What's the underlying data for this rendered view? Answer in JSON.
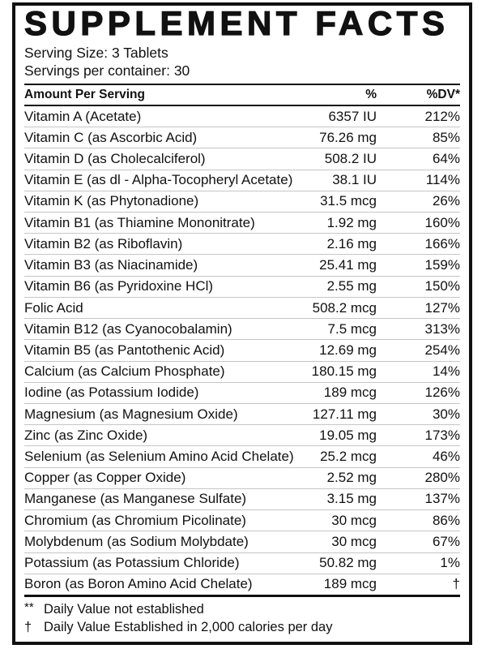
{
  "label": {
    "title": "SUPPLEMENT FACTS",
    "serving_size": "Serving Size: 3 Tablets",
    "servings_per_container": "Servings per container: 30",
    "columns": {
      "name": "Amount Per Serving",
      "amount": "%",
      "dv": "%DV*"
    },
    "rows": [
      {
        "name": "Vitamin A (Acetate)",
        "amount": "6357 IU",
        "dv": "212%"
      },
      {
        "name": "Vitamin C (as Ascorbic Acid)",
        "amount": "76.26 mg",
        "dv": "85%"
      },
      {
        "name": "Vitamin D (as Cholecalciferol)",
        "amount": "508.2 IU",
        "dv": "64%"
      },
      {
        "name": "Vitamin E (as dl - Alpha-Tocopheryl Acetate)",
        "amount": "38.1 IU",
        "dv": "114%"
      },
      {
        "name": "Vitamin K (as Phytonadione)",
        "amount": "31.5 mcg",
        "dv": "26%"
      },
      {
        "name": "Vitamin B1 (as Thiamine Mononitrate)",
        "amount": "1.92 mg",
        "dv": "160%"
      },
      {
        "name": "Vitamin B2 (as Riboflavin)",
        "amount": "2.16 mg",
        "dv": "166%"
      },
      {
        "name": "Vitamin B3 (as Niacinamide)",
        "amount": "25.41 mg",
        "dv": "159%"
      },
      {
        "name": "Vitamin B6 (as Pyridoxine HCl)",
        "amount": "2.55 mg",
        "dv": "150%"
      },
      {
        "name": "Folic Acid",
        "amount": "508.2 mcg",
        "dv": "127%"
      },
      {
        "name": "Vitamin B12 (as Cyanocobalamin)",
        "amount": "7.5 mcg",
        "dv": "313%"
      },
      {
        "name": "Vitamin B5 (as Pantothenic Acid)",
        "amount": "12.69 mg",
        "dv": "254%"
      },
      {
        "name": "Calcium (as Calcium Phosphate)",
        "amount": "180.15 mg",
        "dv": "14%"
      },
      {
        "name": "Iodine (as Potassium Iodide)",
        "amount": "189 mcg",
        "dv": "126%"
      },
      {
        "name": "Magnesium (as Magnesium Oxide)",
        "amount": "127.11 mg",
        "dv": "30%"
      },
      {
        "name": "Zinc (as Zinc Oxide)",
        "amount": "19.05 mg",
        "dv": "173%"
      },
      {
        "name": "Selenium (as Selenium Amino Acid Chelate)",
        "amount": "25.2 mcg",
        "dv": "46%"
      },
      {
        "name": "Copper (as Copper Oxide)",
        "amount": "2.52 mg",
        "dv": "280%"
      },
      {
        "name": "Manganese (as Manganese Sulfate)",
        "amount": "3.15 mg",
        "dv": "137%"
      },
      {
        "name": "Chromium (as Chromium Picolinate)",
        "amount": "30 mcg",
        "dv": "86%"
      },
      {
        "name": "Molybdenum (as Sodium Molybdate)",
        "amount": "30 mcg",
        "dv": "67%"
      },
      {
        "name": "Potassium (as Potassium Chloride)",
        "amount": "50.82 mg",
        "dv": "1%"
      },
      {
        "name": "Boron (as Boron Amino Acid Chelate)",
        "amount": "189 mcg",
        "dv": "†"
      }
    ],
    "footnotes": [
      {
        "marker": "**",
        "text": "Daily Value not established"
      },
      {
        "marker": "†",
        "text": "Daily Value Established in 2,000 calories per day"
      }
    ],
    "colors": {
      "text": "#111111",
      "border": "#111111",
      "row_divider": "#c6c6c6"
    }
  }
}
